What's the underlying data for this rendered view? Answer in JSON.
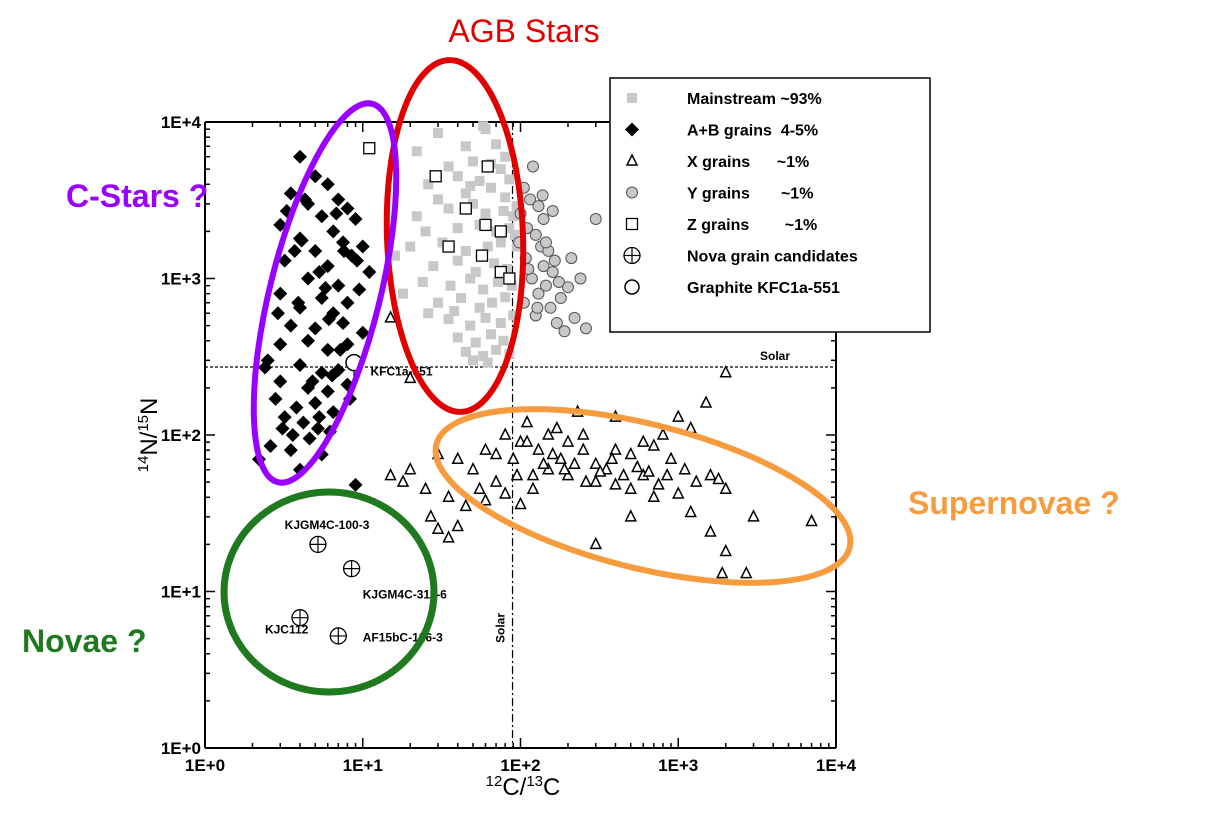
{
  "chart_data": {
    "type": "scatter",
    "title": "",
    "xlabel": "12C/13C",
    "xlabel_parts": {
      "pre_sup": "12",
      "main": "C/",
      "mid_sup": "13",
      "end": "C"
    },
    "ylabel": "14N/15N",
    "ylabel_parts": {
      "pre_sup": "14",
      "main": "N/",
      "mid_sup": "15",
      "end": "N"
    },
    "x_scale": "log",
    "y_scale": "log",
    "xlim": [
      1,
      10000
    ],
    "ylim": [
      1,
      10000
    ],
    "x_ticks": [
      {
        "v": 1,
        "label": "1E+0"
      },
      {
        "v": 10,
        "label": "1E+1"
      },
      {
        "v": 100,
        "label": "1E+2"
      },
      {
        "v": 1000,
        "label": "1E+3"
      },
      {
        "v": 10000,
        "label": "1E+4"
      }
    ],
    "y_ticks": [
      {
        "v": 1,
        "label": "1E+0"
      },
      {
        "v": 10,
        "label": "1E+1"
      },
      {
        "v": 100,
        "label": "1E+2"
      },
      {
        "v": 1000,
        "label": "1E+3"
      },
      {
        "v": 10000,
        "label": "1E+4"
      }
    ],
    "grid": false,
    "legend_position": "top-right",
    "reference_lines": [
      {
        "orientation": "horizontal",
        "value": 272,
        "label": "Solar"
      },
      {
        "orientation": "vertical",
        "value": 89,
        "label": "Solar"
      }
    ],
    "series": [
      {
        "name": "Mainstream ~93%",
        "marker": "filled-square",
        "color": "#c8c8c8",
        "points": [
          [
            30,
            8500
          ],
          [
            45,
            7000
          ],
          [
            60,
            9000
          ],
          [
            22,
            6500
          ],
          [
            35,
            5200
          ],
          [
            50,
            5600
          ],
          [
            70,
            7200
          ],
          [
            26,
            4000
          ],
          [
            40,
            4500
          ],
          [
            55,
            4200
          ],
          [
            75,
            5000
          ],
          [
            85,
            4300
          ],
          [
            30,
            3200
          ],
          [
            45,
            3500
          ],
          [
            65,
            3800
          ],
          [
            80,
            3300
          ],
          [
            22,
            2500
          ],
          [
            35,
            2800
          ],
          [
            50,
            3000
          ],
          [
            60,
            2600
          ],
          [
            78,
            2700
          ],
          [
            90,
            2500
          ],
          [
            25,
            2000
          ],
          [
            40,
            2100
          ],
          [
            55,
            2200
          ],
          [
            70,
            2000
          ],
          [
            85,
            2100
          ],
          [
            20,
            1600
          ],
          [
            32,
            1700
          ],
          [
            45,
            1500
          ],
          [
            62,
            1600
          ],
          [
            75,
            1700
          ],
          [
            95,
            1600
          ],
          [
            28,
            1200
          ],
          [
            40,
            1300
          ],
          [
            52,
            1100
          ],
          [
            68,
            1250
          ],
          [
            82,
            1150
          ],
          [
            24,
            950
          ],
          [
            36,
            900
          ],
          [
            48,
            1000
          ],
          [
            58,
            850
          ],
          [
            72,
            950
          ],
          [
            88,
            900
          ],
          [
            30,
            700
          ],
          [
            42,
            750
          ],
          [
            55,
            650
          ],
          [
            66,
            700
          ],
          [
            80,
            760
          ],
          [
            35,
            550
          ],
          [
            48,
            500
          ],
          [
            60,
            560
          ],
          [
            75,
            520
          ],
          [
            90,
            580
          ],
          [
            40,
            420
          ],
          [
            52,
            390
          ],
          [
            65,
            440
          ],
          [
            78,
            400
          ],
          [
            45,
            340
          ],
          [
            58,
            320
          ],
          [
            70,
            350
          ],
          [
            85,
            330
          ],
          [
            50,
            300
          ],
          [
            62,
            290
          ],
          [
            18,
            800
          ],
          [
            26,
            600
          ],
          [
            38,
            620
          ],
          [
            16,
            1400
          ],
          [
            92,
            1900
          ],
          [
            80,
            6000
          ],
          [
            65,
            5400
          ],
          [
            48,
            3900
          ],
          [
            58,
            9400
          ],
          [
            95,
            2900
          ]
        ]
      },
      {
        "name": "A+B grains  4-5%",
        "marker": "filled-diamond",
        "color": "#000000",
        "points": [
          [
            4,
            6000
          ],
          [
            5,
            4500
          ],
          [
            3.5,
            3500
          ],
          [
            6,
            4000
          ],
          [
            4.5,
            3000
          ],
          [
            7,
            3200
          ],
          [
            5.5,
            2500
          ],
          [
            8,
            2800
          ],
          [
            3,
            2200
          ],
          [
            6.5,
            2000
          ],
          [
            9,
            2400
          ],
          [
            4,
            1800
          ],
          [
            7.5,
            1700
          ],
          [
            5,
            1500
          ],
          [
            10,
            1600
          ],
          [
            3.2,
            1300
          ],
          [
            6,
            1200
          ],
          [
            8.5,
            1400
          ],
          [
            4.5,
            1000
          ],
          [
            7,
            900
          ],
          [
            11,
            1100
          ],
          [
            3,
            800
          ],
          [
            5.5,
            750
          ],
          [
            9.5,
            850
          ],
          [
            4,
            650
          ],
          [
            6.5,
            600
          ],
          [
            8,
            700
          ],
          [
            3.5,
            500
          ],
          [
            5,
            480
          ],
          [
            7.5,
            520
          ],
          [
            10,
            450
          ],
          [
            3,
            380
          ],
          [
            4.5,
            400
          ],
          [
            6,
            350
          ],
          [
            8,
            380
          ],
          [
            2.5,
            300
          ],
          [
            4,
            280
          ],
          [
            5.5,
            250
          ],
          [
            7,
            260
          ],
          [
            3,
            220
          ],
          [
            4.5,
            200
          ],
          [
            6,
            190
          ],
          [
            8,
            210
          ],
          [
            2.8,
            170
          ],
          [
            3.8,
            150
          ],
          [
            5,
            160
          ],
          [
            6.5,
            140
          ],
          [
            3.2,
            130
          ],
          [
            4.2,
            120
          ],
          [
            5.2,
            110
          ],
          [
            3.6,
            100
          ],
          [
            4.6,
            95
          ],
          [
            6.2,
            105
          ],
          [
            2.6,
            85
          ],
          [
            3.5,
            80
          ],
          [
            5.5,
            75
          ],
          [
            2.2,
            70
          ],
          [
            4,
            60
          ],
          [
            9,
            48
          ],
          [
            3.3,
            2700
          ],
          [
            6.8,
            2600
          ],
          [
            7.6,
            1500
          ],
          [
            5.3,
            1100
          ],
          [
            2.9,
            600
          ],
          [
            9.2,
            1300
          ],
          [
            4.1,
            1750
          ],
          [
            5.8,
            870
          ],
          [
            3.7,
            1500
          ],
          [
            6.1,
            550
          ],
          [
            2.4,
            270
          ],
          [
            5.3,
            130
          ],
          [
            3.1,
            110
          ],
          [
            4.8,
            220
          ],
          [
            6.4,
            240
          ],
          [
            8.3,
            170
          ],
          [
            3.9,
            700
          ],
          [
            7.2,
            350
          ],
          [
            4.3,
            3200
          ]
        ]
      },
      {
        "name": "X grains      ~1%",
        "marker": "open-triangle",
        "color": "#000000",
        "points": [
          [
            2000,
            250
          ],
          [
            1500,
            160
          ],
          [
            1200,
            110
          ],
          [
            1000,
            130
          ],
          [
            800,
            100
          ],
          [
            700,
            85
          ],
          [
            900,
            70
          ],
          [
            600,
            90
          ],
          [
            500,
            75
          ],
          [
            400,
            80
          ],
          [
            300,
            65
          ],
          [
            250,
            80
          ],
          [
            200,
            90
          ],
          [
            180,
            70
          ],
          [
            150,
            100
          ],
          [
            130,
            80
          ],
          [
            110,
            120
          ],
          [
            100,
            90
          ],
          [
            90,
            70
          ],
          [
            80,
            100
          ],
          [
            70,
            75
          ],
          [
            60,
            80
          ],
          [
            50,
            60
          ],
          [
            40,
            70
          ],
          [
            30,
            75
          ],
          [
            20,
            60
          ],
          [
            18,
            50
          ],
          [
            25,
            45
          ],
          [
            35,
            40
          ],
          [
            45,
            35
          ],
          [
            60,
            38
          ],
          [
            80,
            42
          ],
          [
            100,
            36
          ],
          [
            120,
            55
          ],
          [
            150,
            60
          ],
          [
            200,
            55
          ],
          [
            300,
            50
          ],
          [
            400,
            48
          ],
          [
            500,
            45
          ],
          [
            700,
            40
          ],
          [
            1000,
            42
          ],
          [
            1300,
            50
          ],
          [
            1600,
            55
          ],
          [
            2000,
            45
          ],
          [
            3000,
            30
          ],
          [
            7000,
            28
          ],
          [
            1200,
            32
          ],
          [
            2000,
            18
          ],
          [
            1600,
            24
          ],
          [
            2700,
            13
          ],
          [
            1900,
            13
          ],
          [
            500,
            30
          ],
          [
            300,
            20
          ],
          [
            120,
            45
          ],
          [
            40,
            26
          ],
          [
            27,
            30
          ],
          [
            35,
            22
          ],
          [
            30,
            25
          ],
          [
            15,
            55
          ],
          [
            20,
            230
          ],
          [
            15,
            560
          ],
          [
            110,
            90
          ],
          [
            170,
            110
          ],
          [
            250,
            100
          ],
          [
            350,
            60
          ],
          [
            450,
            55
          ],
          [
            600,
            55
          ],
          [
            850,
            55
          ],
          [
            1100,
            60
          ],
          [
            400,
            130
          ],
          [
            230,
            140
          ],
          [
            140,
            65
          ],
          [
            95,
            55
          ],
          [
            70,
            50
          ],
          [
            55,
            45
          ],
          [
            160,
            75
          ],
          [
            190,
            60
          ],
          [
            220,
            65
          ],
          [
            260,
            50
          ],
          [
            320,
            58
          ],
          [
            380,
            70
          ],
          [
            550,
            62
          ],
          [
            650,
            58
          ],
          [
            750,
            48
          ],
          [
            1800,
            52
          ]
        ]
      },
      {
        "name": "Y grains       ~1%",
        "marker": "open-circle-gray",
        "color": "#9e9e9e",
        "points": [
          [
            120,
            5200
          ],
          [
            105,
            3800
          ],
          [
            115,
            3200
          ],
          [
            130,
            2900
          ],
          [
            100,
            2600
          ],
          [
            140,
            2400
          ],
          [
            110,
            2100
          ],
          [
            125,
            1900
          ],
          [
            98,
            1700
          ],
          [
            135,
            1600
          ],
          [
            150,
            1500
          ],
          [
            108,
            1350
          ],
          [
            140,
            1200
          ],
          [
            160,
            1100
          ],
          [
            118,
            1000
          ],
          [
            145,
            900
          ],
          [
            130,
            800
          ],
          [
            180,
            750
          ],
          [
            105,
            700
          ],
          [
            155,
            650
          ],
          [
            125,
            580
          ],
          [
            170,
            520
          ],
          [
            220,
            560
          ],
          [
            260,
            480
          ],
          [
            190,
            460
          ],
          [
            300,
            2400
          ],
          [
            145,
            1700
          ],
          [
            165,
            1300
          ],
          [
            112,
            1150
          ],
          [
            240,
            1000
          ],
          [
            200,
            880
          ],
          [
            128,
            650
          ],
          [
            175,
            950
          ],
          [
            210,
            1350
          ],
          [
            138,
            3400
          ],
          [
            160,
            2700
          ]
        ]
      },
      {
        "name": "Z grains        ~1%",
        "marker": "open-square",
        "color": "#000000",
        "points": [
          [
            11,
            6800
          ],
          [
            29,
            4500
          ],
          [
            62,
            5200
          ],
          [
            45,
            2800
          ],
          [
            60,
            2200
          ],
          [
            75,
            2000
          ],
          [
            35,
            1600
          ],
          [
            57,
            1400
          ],
          [
            75,
            1100
          ],
          [
            85,
            1000
          ]
        ]
      },
      {
        "name": "Nova grain candidates",
        "marker": "crossed-circle",
        "color": "#000000",
        "points": [
          [
            5.2,
            20
          ],
          [
            8.5,
            14
          ],
          [
            4,
            6.8
          ],
          [
            7,
            5.2
          ]
        ]
      },
      {
        "name": "Graphite KFC1a-551",
        "marker": "large-open-circle",
        "color": "#000000",
        "points": [
          [
            8.8,
            290
          ]
        ]
      }
    ],
    "annotations": [
      {
        "text": "KFC1a-551",
        "x": 11.2,
        "y": 240
      },
      {
        "text": "KJGM4C-100-3",
        "x": 3.2,
        "y": 25
      },
      {
        "text": "KJGM4C-311-6",
        "x": 10,
        "y": 9
      },
      {
        "text": "KJC112",
        "x": 2.4,
        "y": 5.4
      },
      {
        "text": "AF15bC-126-3",
        "x": 10,
        "y": 4.8
      }
    ],
    "regions": [
      {
        "label": "AGB Stars",
        "color": "#e00000"
      },
      {
        "label": "C-Stars ?",
        "color": "#9900ff"
      },
      {
        "label": "Supernovae ?",
        "color": "#f79b3f"
      },
      {
        "label": "Novae ?",
        "color": "#1f7a1f"
      }
    ]
  }
}
